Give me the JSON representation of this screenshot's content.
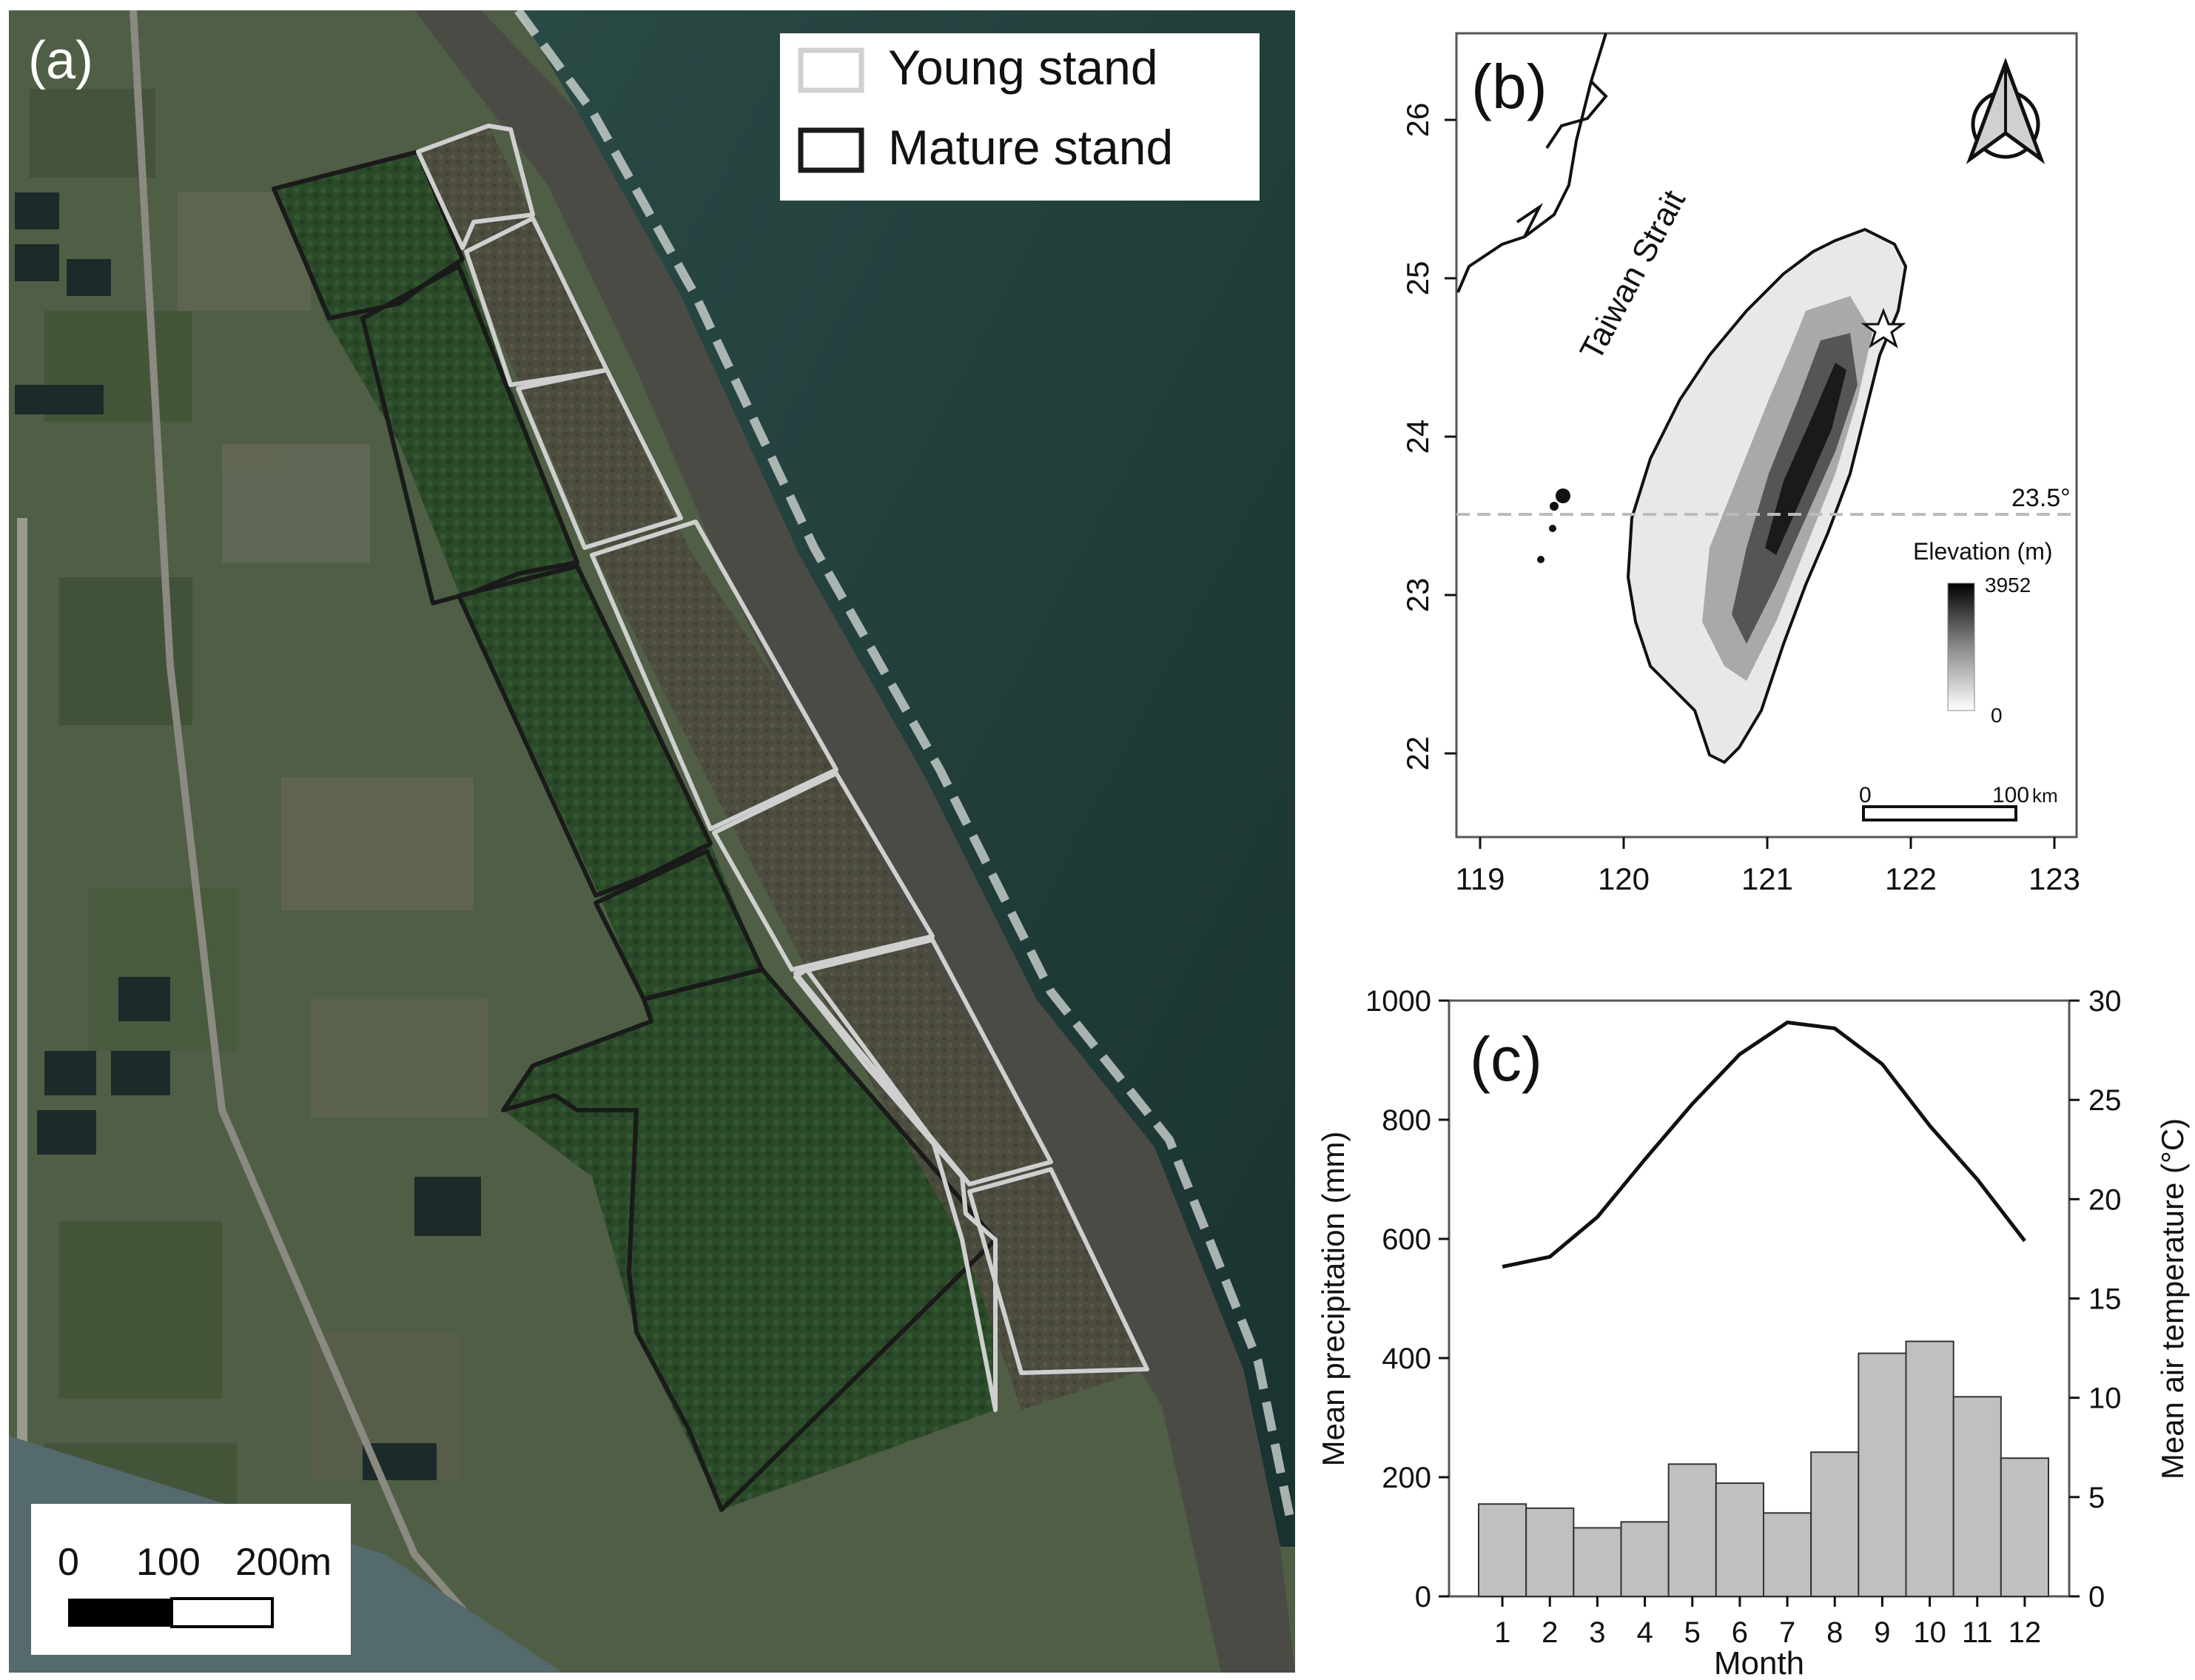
{
  "panel_a": {
    "label": "(a)",
    "legend": {
      "young": "Young stand",
      "mature": "Mature stand",
      "young_color": "#cfcfcf",
      "mature_color": "#1a1a1a"
    },
    "scalebar": {
      "t0": "0",
      "t1": "100",
      "t2": "200m"
    },
    "colors": {
      "sea": "#1f3b38",
      "beach": "#4a4a44",
      "forest": "#2c4a2a",
      "farmland": "#4f5e45"
    }
  },
  "panel_b": {
    "label": "(b)",
    "sea_label": "Taiwan Strait",
    "lat_ticks": [
      "26",
      "25",
      "24",
      "23",
      "22"
    ],
    "lon_ticks": [
      "119",
      "120",
      "121",
      "122",
      "123"
    ],
    "ref_line_label": "23.5°",
    "elevation_title": "Elevation (m)",
    "elev_max": "3952",
    "elev_min": "0",
    "scale_labels": {
      "t0": "0",
      "t1": "100",
      "unit": "km"
    },
    "north_arrow": "north-arrow-icon",
    "site_marker": "star-icon"
  },
  "panel_c": {
    "label": "(c)"
  },
  "chart_data": {
    "type": "bar",
    "categories": [
      "1",
      "2",
      "3",
      "4",
      "5",
      "6",
      "7",
      "8",
      "9",
      "10",
      "11",
      "12"
    ],
    "xlabel": "Month",
    "ylabel": "Mean precipitation (mm)",
    "ylabel_right": "Mean air temperature (°C)",
    "ylim": [
      0,
      1000
    ],
    "ylim_right": [
      0,
      30
    ],
    "yticks": [
      "0",
      "200",
      "400",
      "600",
      "800",
      "1000"
    ],
    "yticks_right": [
      "0",
      "5",
      "10",
      "15",
      "20",
      "25",
      "30"
    ],
    "series": [
      {
        "type": "bar",
        "axis": "left",
        "values": [
          155,
          148,
          115,
          125,
          222,
          190,
          140,
          242,
          408,
          428,
          335,
          232
        ],
        "color": "#c0c0c0"
      },
      {
        "type": "line",
        "axis": "right",
        "values": [
          16.6,
          17.1,
          19.1,
          22.0,
          24.8,
          27.3,
          28.9,
          28.6,
          26.8,
          23.7,
          21.0,
          17.9
        ],
        "color": "#111111"
      }
    ]
  }
}
